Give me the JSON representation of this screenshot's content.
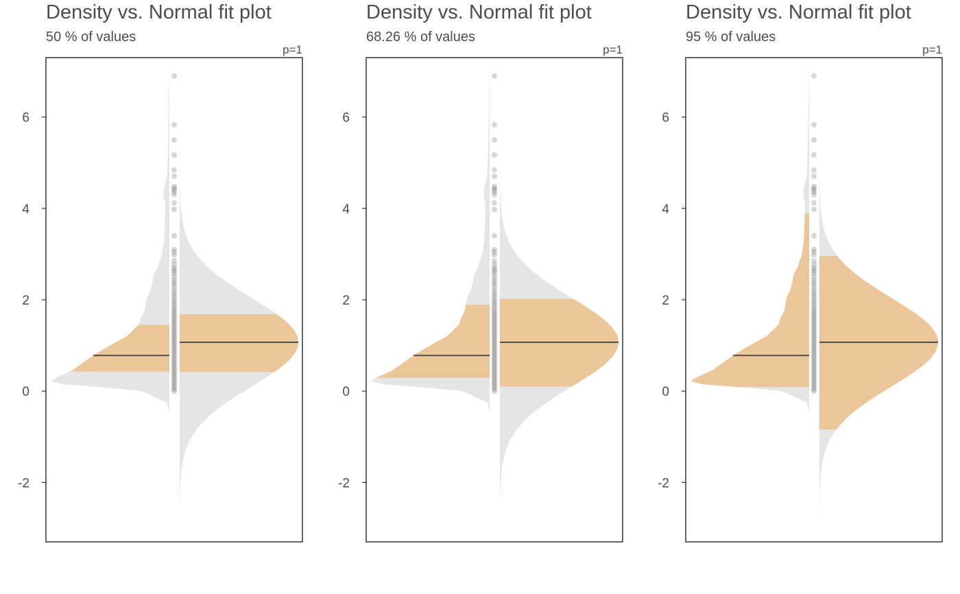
{
  "chart_data": [
    {
      "type": "violin",
      "title": "Density vs. Normal fit plot",
      "subtitle": "50 % of values",
      "p_label": "p=1",
      "ylim": [
        -3.3,
        7.3
      ],
      "yticks": [
        6,
        4,
        2,
        0,
        -2
      ],
      "sample_mean": 0.78,
      "normal_mean": 1.07,
      "normal_sd": 0.97,
      "density_band": [
        0.42,
        1.46
      ],
      "normal_band": [
        0.42,
        1.7
      ]
    },
    {
      "type": "violin",
      "title": "Density vs. Normal fit plot",
      "subtitle": "68.26 % of values",
      "p_label": "p=1",
      "ylim": [
        -3.3,
        7.3
      ],
      "yticks": [
        6,
        4,
        2,
        0,
        -2
      ],
      "sample_mean": 0.78,
      "normal_mean": 1.07,
      "normal_sd": 0.97,
      "density_band": [
        0.29,
        1.91
      ],
      "normal_band": [
        0.09,
        2.04
      ]
    },
    {
      "type": "violin",
      "title": "Density vs. Normal fit plot",
      "subtitle": "95 % of values",
      "p_label": "p=1",
      "ylim": [
        -3.3,
        7.3
      ],
      "yticks": [
        6,
        4,
        2,
        0,
        -2
      ],
      "sample_mean": 0.78,
      "normal_mean": 1.07,
      "normal_sd": 0.97,
      "density_band": [
        0.09,
        3.9
      ],
      "normal_band": [
        -0.84,
        2.98
      ]
    }
  ],
  "shared": {
    "density_profile": [
      [
        -0.45,
        0.0
      ],
      [
        -0.25,
        0.02
      ],
      [
        0.0,
        0.23
      ],
      [
        0.08,
        0.55
      ],
      [
        0.15,
        0.9
      ],
      [
        0.22,
        1.0
      ],
      [
        0.3,
        0.95
      ],
      [
        0.45,
        0.82
      ],
      [
        0.6,
        0.74
      ],
      [
        0.8,
        0.63
      ],
      [
        1.0,
        0.5
      ],
      [
        1.2,
        0.36
      ],
      [
        1.45,
        0.26
      ],
      [
        1.6,
        0.24
      ],
      [
        1.75,
        0.21
      ],
      [
        1.9,
        0.2
      ],
      [
        2.05,
        0.19
      ],
      [
        2.2,
        0.16
      ],
      [
        2.4,
        0.14
      ],
      [
        2.55,
        0.13
      ],
      [
        2.7,
        0.1
      ],
      [
        2.85,
        0.08
      ],
      [
        3.0,
        0.06
      ],
      [
        3.3,
        0.045
      ],
      [
        3.6,
        0.04
      ],
      [
        3.9,
        0.036
      ],
      [
        4.1,
        0.035
      ],
      [
        4.3,
        0.05
      ],
      [
        4.45,
        0.045
      ],
      [
        4.7,
        0.02
      ],
      [
        5.2,
        0.012
      ],
      [
        5.8,
        0.008
      ],
      [
        6.5,
        0.004
      ],
      [
        7.2,
        0.0
      ]
    ],
    "points": [
      6.9,
      5.83,
      5.5,
      5.17,
      4.84,
      4.7,
      4.48,
      4.44,
      4.41,
      4.36,
      4.3,
      4.12,
      3.98,
      3.4,
      3.1,
      3.05,
      2.98,
      2.85,
      2.77,
      2.7,
      2.66,
      2.62,
      2.57,
      2.5,
      2.44,
      2.38,
      2.33,
      2.27,
      2.2,
      2.15,
      2.1,
      2.05,
      1.99,
      1.95,
      1.9,
      1.85,
      1.8,
      1.76,
      1.72,
      1.68,
      1.64,
      1.6,
      1.56,
      1.52,
      1.48,
      1.44,
      1.4,
      1.36,
      1.32,
      1.28,
      1.24,
      1.2,
      1.16,
      1.12,
      1.08,
      1.04,
      1.0,
      0.96,
      0.92,
      0.88,
      0.84,
      0.8,
      0.76,
      0.72,
      0.68,
      0.64,
      0.6,
      0.56,
      0.52,
      0.48,
      0.44,
      0.4,
      0.36,
      0.32,
      0.28,
      0.24,
      0.2,
      0.16,
      0.12,
      0.08,
      0.04,
      0.0
    ],
    "colors": {
      "band_fill": "#ebc699",
      "density_fill": "#e5e5e5",
      "points": "#8c8c8c",
      "line": "#4d4d4d",
      "frame": "#333333",
      "text": "#4d4d4d"
    }
  }
}
